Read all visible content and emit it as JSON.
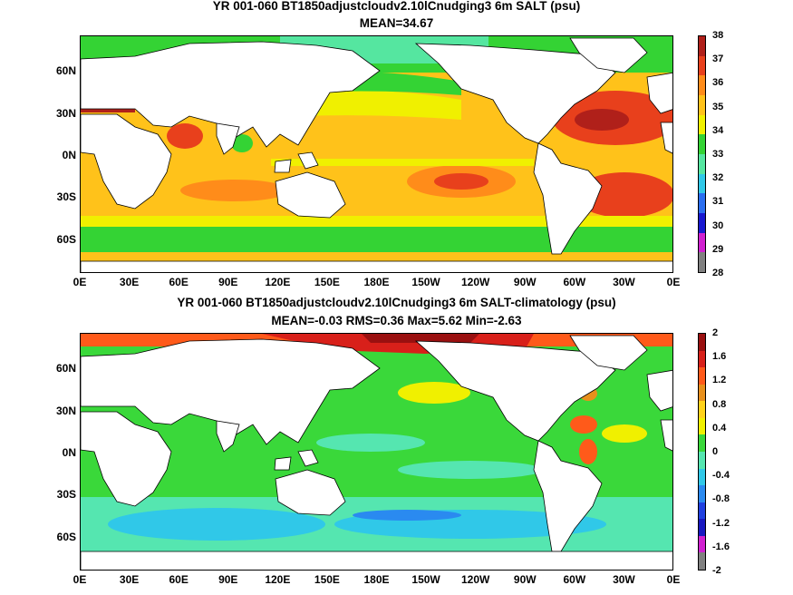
{
  "top": {
    "title": "YR 001-060 BT1850adjustcloudv2.10lCnudging3 6m SALT (psu)",
    "subtitle": "MEAN=34.67",
    "colorbar_labels": [
      "38",
      "37",
      "36",
      "35",
      "34",
      "33",
      "32",
      "31",
      "30",
      "29",
      "28"
    ],
    "colorbar_colors": [
      "#b0201a",
      "#e8401c",
      "#ff8c1a",
      "#ffc21a",
      "#f0f000",
      "#34d334",
      "#55e6a0",
      "#30c8e8",
      "#2a6ef0",
      "#1818d0",
      "#d020d0",
      "#808080"
    ]
  },
  "bottom": {
    "title": "YR 001-060 BT1850adjustcloudv2.10lCnudging3 6m SALT-climatology (psu)",
    "subtitle": "MEAN=-0.03   RMS=0.36   Max=5.62   Min=-2.63",
    "colorbar_labels": [
      "2",
      "1.6",
      "1.2",
      "0.8",
      "0.4",
      "0",
      "-0.4",
      "-0.8",
      "-1.2",
      "-1.6",
      "-2"
    ],
    "colorbar_colors": [
      "#9a1010",
      "#d8201a",
      "#ff5a1a",
      "#e8901c",
      "#ffd21a",
      "#f0f000",
      "#3ad83a",
      "#55e6b0",
      "#30c8e8",
      "#2a8af0",
      "#2040e0",
      "#1818c0",
      "#d020d0",
      "#808080"
    ]
  },
  "lat_labels": [
    "60N",
    "30N",
    "0N",
    "30S",
    "60S"
  ],
  "lon_labels": [
    "0E",
    "30E",
    "60E",
    "90E",
    "120E",
    "150E",
    "180E",
    "150W",
    "120W",
    "90W",
    "60W",
    "30W",
    "0E"
  ],
  "colors": {
    "land": "#ffffff",
    "coast": "#000000"
  }
}
